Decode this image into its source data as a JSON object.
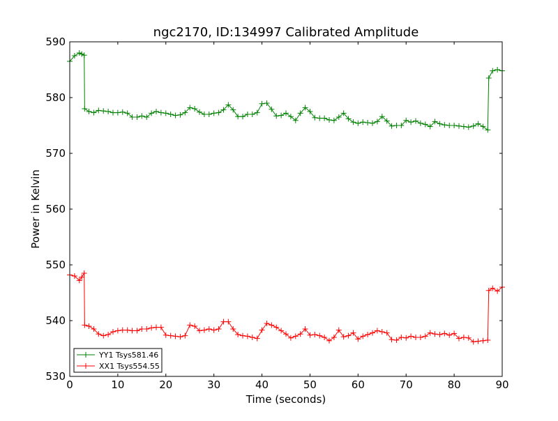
{
  "chart_data": {
    "type": "line",
    "title": "ngc2170, ID:134997 Calibrated Amplitude",
    "xlabel": "Time (seconds)",
    "ylabel": "Power in Kelvin",
    "xlim": [
      0,
      90
    ],
    "ylim": [
      530,
      590
    ],
    "x_ticks": [
      0,
      10,
      20,
      30,
      40,
      50,
      60,
      70,
      80,
      90
    ],
    "y_ticks": [
      530,
      540,
      550,
      560,
      570,
      580,
      590
    ],
    "grid": false,
    "legend_position": "bottom-left",
    "marker": "+",
    "series": [
      {
        "name": "YY1 Tsys581.46",
        "color": "#008000",
        "x": [
          0,
          1,
          2,
          2.5,
          3,
          3.1,
          4,
          5,
          6,
          7,
          8,
          9,
          10,
          11,
          12,
          13,
          14,
          15,
          16,
          17,
          18,
          19,
          20,
          21,
          22,
          23,
          24,
          25,
          26,
          27,
          28,
          29,
          30,
          31,
          32,
          33,
          34,
          35,
          36,
          37,
          38,
          39,
          40,
          41,
          42,
          43,
          44,
          45,
          46,
          47,
          48,
          49,
          50,
          51,
          52,
          53,
          54,
          55,
          56,
          57,
          58,
          59,
          60,
          61,
          62,
          63,
          64,
          65,
          66,
          67,
          68,
          69,
          70,
          71,
          72,
          73,
          74,
          75,
          76,
          77,
          78,
          79,
          80,
          81,
          82,
          83,
          84,
          85,
          86,
          87,
          87.2,
          88,
          89,
          90
        ],
        "values": [
          586.5,
          587.5,
          588,
          587.8,
          587.6,
          578,
          577.5,
          577.3,
          577.7,
          577.6,
          577.5,
          577.3,
          577.3,
          577.4,
          577.2,
          576.5,
          576.5,
          576.7,
          576.5,
          577.2,
          577.5,
          577.3,
          577.2,
          577,
          576.8,
          576.9,
          577.3,
          578.2,
          578,
          577.4,
          577,
          577,
          577.2,
          577.3,
          577.8,
          578.7,
          577.8,
          576.6,
          576.6,
          577,
          577,
          577.3,
          578.9,
          579,
          577.9,
          576.7,
          576.8,
          577.2,
          576.6,
          575.9,
          577.2,
          578.2,
          577.5,
          576.4,
          576.3,
          576.3,
          576,
          575.9,
          576.5,
          577.2,
          576.2,
          575.6,
          575.4,
          575.6,
          575.5,
          575.4,
          575.7,
          576.6,
          575.8,
          574.9,
          575,
          575,
          575.9,
          575.6,
          575.8,
          575.4,
          575.2,
          574.8,
          575.7,
          575.3,
          575.1,
          575,
          575,
          574.9,
          574.8,
          574.7,
          574.9,
          575.3,
          574.8,
          574.2,
          583.5,
          584.8,
          585,
          584.8
        ]
      },
      {
        "name": "XX1 Tsys554.55",
        "color": "#ff0000",
        "x": [
          0,
          1,
          2,
          2.5,
          3,
          3.1,
          4,
          5,
          6,
          7,
          8,
          9,
          10,
          11,
          12,
          13,
          14,
          15,
          16,
          17,
          18,
          19,
          20,
          21,
          22,
          23,
          24,
          25,
          26,
          27,
          28,
          29,
          30,
          31,
          32,
          33,
          34,
          35,
          36,
          37,
          38,
          39,
          40,
          41,
          42,
          43,
          44,
          45,
          46,
          47,
          48,
          49,
          50,
          51,
          52,
          53,
          54,
          55,
          56,
          57,
          58,
          59,
          60,
          61,
          62,
          63,
          64,
          65,
          66,
          67,
          68,
          69,
          70,
          71,
          72,
          73,
          74,
          75,
          76,
          77,
          78,
          79,
          80,
          81,
          82,
          83,
          84,
          85,
          86,
          87,
          87.2,
          88,
          89,
          90
        ],
        "values": [
          548.2,
          548,
          547.2,
          547.8,
          548.5,
          539.2,
          539,
          538.5,
          537.6,
          537.3,
          537.5,
          538,
          538.2,
          538.3,
          538.3,
          538.2,
          538.2,
          538.5,
          538.5,
          538.7,
          538.8,
          538.8,
          537.4,
          537.3,
          537.2,
          537.1,
          537.3,
          539.2,
          539,
          538.2,
          538.3,
          538.5,
          538.3,
          538.5,
          539.8,
          539.8,
          538.5,
          537.5,
          537.3,
          537.2,
          537,
          536.8,
          538.3,
          539.5,
          539.2,
          538.8,
          538.2,
          537.6,
          536.9,
          537.2,
          537.6,
          538.5,
          537.4,
          537.5,
          537.3,
          537,
          536.4,
          537,
          538.3,
          537.1,
          537.3,
          537.8,
          536.7,
          537.2,
          537.5,
          537.8,
          538.2,
          538,
          537.8,
          536.6,
          536.5,
          537,
          536.9,
          537.2,
          537,
          537,
          537.2,
          537.8,
          537.6,
          537.5,
          537.7,
          537.4,
          537.7,
          536.8,
          537,
          536.9,
          536.2,
          536.3,
          536.4,
          536.5,
          545.4,
          545.8,
          545.3,
          546
        ]
      }
    ]
  }
}
